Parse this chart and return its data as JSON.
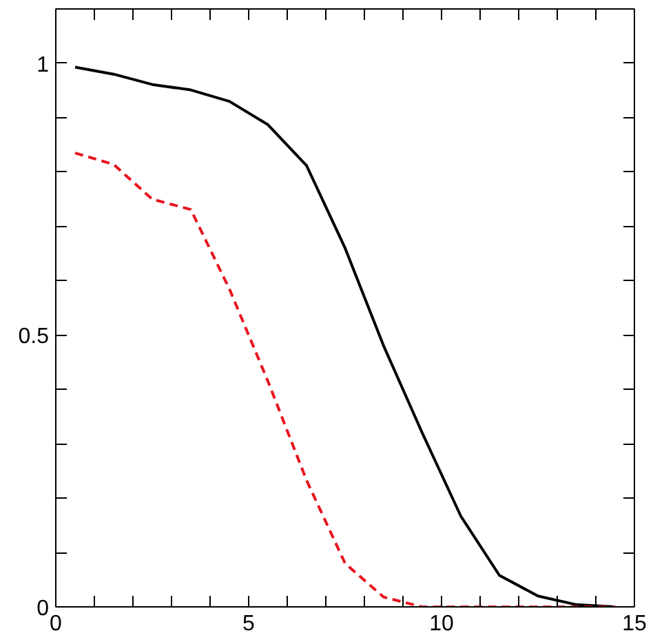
{
  "chart_data": {
    "type": "line",
    "x": [
      0.5,
      1.5,
      2.5,
      3.5,
      4.5,
      5.5,
      6.5,
      7.5,
      8.5,
      9.5,
      10.5,
      11.5,
      12.5,
      13.5,
      14.5
    ],
    "series": [
      {
        "color": "#000000",
        "line_style": "solid",
        "values": [
          0.993,
          0.98,
          0.961,
          0.951,
          0.93,
          0.887,
          0.812,
          0.66,
          0.48,
          0.32,
          0.167,
          0.058,
          0.02,
          0.004,
          0
        ]
      },
      {
        "color": "#e8141e",
        "line_style": "dashed",
        "values": [
          0.835,
          0.814,
          0.75,
          0.731,
          0.585,
          0.415,
          0.233,
          0.08,
          0.018,
          0,
          0,
          0,
          0,
          0,
          0
        ]
      }
    ],
    "xlim": [
      0,
      15
    ],
    "ylim": [
      0,
      1.1
    ],
    "xticks": [
      0,
      {
        "value": 1,
        "label": null
      },
      {
        "value": 2,
        "label": null
      },
      {
        "value": 3,
        "label": null
      },
      {
        "value": 4,
        "label": null
      },
      5,
      {
        "value": 6,
        "label": null
      },
      {
        "value": 7,
        "label": null
      },
      {
        "value": 8,
        "label": null
      },
      {
        "value": 9,
        "label": null
      },
      10,
      {
        "value": 11,
        "label": null
      },
      {
        "value": 12,
        "label": null
      },
      {
        "value": 13,
        "label": null
      },
      {
        "value": 14,
        "label": null
      },
      15
    ],
    "yticks": [
      0,
      {
        "value": 0.1,
        "label": null
      },
      {
        "value": 0.2,
        "label": null
      },
      {
        "value": 0.3,
        "label": null
      },
      {
        "value": 0.4,
        "label": null
      },
      0.5,
      {
        "value": 0.6,
        "label": null
      },
      {
        "value": 0.7,
        "label": null
      },
      {
        "value": 0.8,
        "label": null
      },
      {
        "value": 0.9,
        "label": null
      },
      1
    ],
    "grid": false,
    "marker": "none"
  }
}
